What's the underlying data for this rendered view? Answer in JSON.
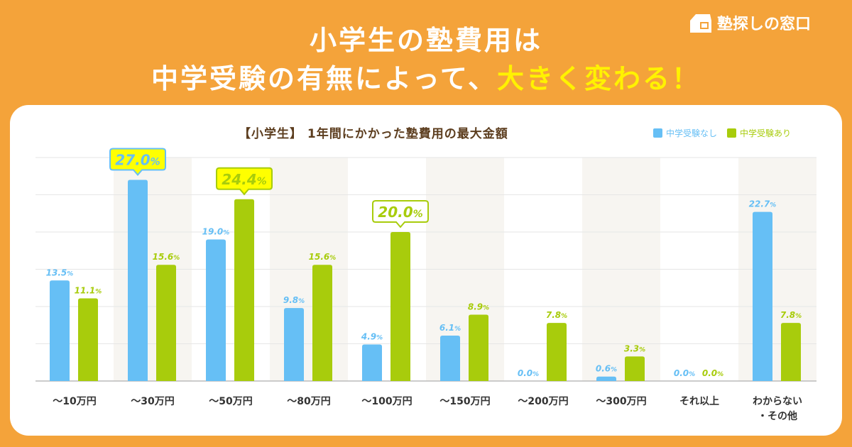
{
  "headline": {
    "line1": "小学生の塾費用は",
    "line2_prefix": "中学受験の有無によって、",
    "line2_highlight": "大きく変わる！"
  },
  "logo": {
    "text": "塾探しの窓口",
    "icon": "school-house-icon"
  },
  "colors": {
    "background": "#F4A33A",
    "blue": "#66BFF5",
    "green": "#A8CC0C",
    "shade": "#F7F5F1",
    "callout_fill": "#FFFF00"
  },
  "chart_data": {
    "type": "bar",
    "title": "【小学生】 1年間にかかった塾費用の最大金額",
    "categories": [
      "〜10万円",
      "〜30万円",
      "〜50万円",
      "〜80万円",
      "〜100万円",
      "〜150万円",
      "〜200万円",
      "〜300万円",
      "それ以上",
      "わからない\n・その他"
    ],
    "series": [
      {
        "name": "中学受験なし",
        "color": "#66BFF5",
        "values": [
          13.5,
          27.0,
          19.0,
          9.8,
          4.9,
          6.1,
          0.0,
          0.6,
          0.0,
          22.7
        ]
      },
      {
        "name": "中学受験あり",
        "color": "#A8CC0C",
        "values": [
          11.1,
          15.6,
          24.4,
          15.6,
          20.0,
          8.9,
          7.8,
          3.3,
          0.0,
          7.8
        ]
      }
    ],
    "highlights": [
      {
        "series": 0,
        "index": 1,
        "fill": "#FFFF00"
      },
      {
        "series": 1,
        "index": 2,
        "fill": "#FFFF00"
      },
      {
        "series": 1,
        "index": 4,
        "fill": "#FFFFFF"
      }
    ],
    "unit": "%",
    "ylim": [
      0,
      30
    ],
    "ygrid_step": 5,
    "legend_position": "top-right"
  }
}
